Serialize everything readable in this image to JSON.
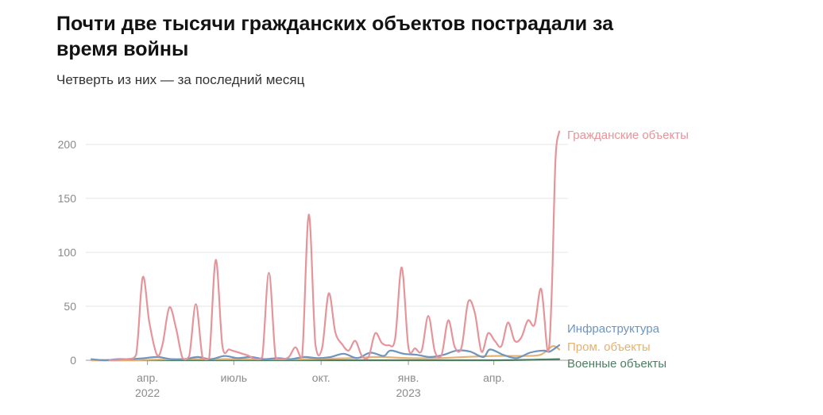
{
  "header": {
    "title": "Почти две тысячи гражданских объектов пострадали за время войны",
    "subtitle": "Четверть из них — за последний месяц"
  },
  "chart_data": {
    "type": "line",
    "title": "Почти две тысячи гражданских объектов пострадали за время войны",
    "subtitle": "Четверть из них — за последний месяц",
    "ylim": [
      0,
      220
    ],
    "y_ticks": [
      0,
      50,
      100,
      150,
      200
    ],
    "x_range": [
      "2022-01-26",
      "2023-05-31"
    ],
    "x_ticks": [
      {
        "date": "2022-04-01",
        "label": "апр.",
        "sublabel": "2022"
      },
      {
        "date": "2022-07-01",
        "label": "июль",
        "sublabel": ""
      },
      {
        "date": "2022-10-01",
        "label": "окт.",
        "sublabel": ""
      },
      {
        "date": "2023-01-01",
        "label": "янв.",
        "sublabel": "2023"
      },
      {
        "date": "2023-04-01",
        "label": "апр.",
        "sublabel": ""
      }
    ],
    "grid": true,
    "legend": "right-end labels",
    "series": [
      {
        "name": "Гражданские объекты",
        "color": "#e5949a",
        "points": [
          [
            "2022-02-20",
            0
          ],
          [
            "2022-03-10",
            1
          ],
          [
            "2022-03-20",
            5
          ],
          [
            "2022-03-27",
            77
          ],
          [
            "2022-04-03",
            35
          ],
          [
            "2022-04-11",
            5
          ],
          [
            "2022-04-17",
            15
          ],
          [
            "2022-04-24",
            49
          ],
          [
            "2022-05-01",
            30
          ],
          [
            "2022-05-08",
            2
          ],
          [
            "2022-05-15",
            4
          ],
          [
            "2022-05-22",
            52
          ],
          [
            "2022-05-29",
            3
          ],
          [
            "2022-06-05",
            2
          ],
          [
            "2022-06-12",
            93
          ],
          [
            "2022-06-19",
            13
          ],
          [
            "2022-06-26",
            10
          ],
          [
            "2022-07-03",
            8
          ],
          [
            "2022-07-10",
            6
          ],
          [
            "2022-07-17",
            4
          ],
          [
            "2022-07-24",
            1
          ],
          [
            "2022-07-31",
            3
          ],
          [
            "2022-08-07",
            81
          ],
          [
            "2022-08-14",
            3
          ],
          [
            "2022-08-21",
            1
          ],
          [
            "2022-08-28",
            3
          ],
          [
            "2022-09-04",
            12
          ],
          [
            "2022-09-11",
            3
          ],
          [
            "2022-09-18",
            135
          ],
          [
            "2022-09-25",
            15
          ],
          [
            "2022-10-02",
            11
          ],
          [
            "2022-10-09",
            62
          ],
          [
            "2022-10-16",
            26
          ],
          [
            "2022-10-23",
            15
          ],
          [
            "2022-10-30",
            9
          ],
          [
            "2022-11-06",
            18
          ],
          [
            "2022-11-13",
            4
          ],
          [
            "2022-11-20",
            3
          ],
          [
            "2022-11-27",
            25
          ],
          [
            "2022-12-04",
            16
          ],
          [
            "2022-12-11",
            14
          ],
          [
            "2022-12-18",
            20
          ],
          [
            "2022-12-25",
            86
          ],
          [
            "2023-01-01",
            12
          ],
          [
            "2023-01-08",
            11
          ],
          [
            "2023-01-15",
            9
          ],
          [
            "2023-01-22",
            41
          ],
          [
            "2023-01-29",
            8
          ],
          [
            "2023-02-05",
            5
          ],
          [
            "2023-02-12",
            37
          ],
          [
            "2023-02-19",
            12
          ],
          [
            "2023-02-26",
            12
          ],
          [
            "2023-03-05",
            54
          ],
          [
            "2023-03-12",
            44
          ],
          [
            "2023-03-19",
            8
          ],
          [
            "2023-03-26",
            25
          ],
          [
            "2023-04-02",
            18
          ],
          [
            "2023-04-09",
            13
          ],
          [
            "2023-04-16",
            35
          ],
          [
            "2023-04-23",
            18
          ],
          [
            "2023-04-30",
            21
          ],
          [
            "2023-05-07",
            37
          ],
          [
            "2023-05-14",
            33
          ],
          [
            "2023-05-21",
            66
          ],
          [
            "2023-05-28",
            8
          ],
          [
            "2023-06-01",
            60
          ],
          [
            "2023-06-05",
            185
          ],
          [
            "2023-06-09",
            212
          ]
        ]
      },
      {
        "name": "Инфраструктура",
        "color": "#6e94bf",
        "points": [
          [
            "2022-02-01",
            1
          ],
          [
            "2022-02-15",
            0
          ],
          [
            "2022-03-01",
            1
          ],
          [
            "2022-03-15",
            1
          ],
          [
            "2022-03-29",
            2
          ],
          [
            "2022-04-12",
            3
          ],
          [
            "2022-04-26",
            1
          ],
          [
            "2022-05-10",
            1
          ],
          [
            "2022-05-24",
            3
          ],
          [
            "2022-06-07",
            1
          ],
          [
            "2022-06-21",
            4
          ],
          [
            "2022-07-05",
            2
          ],
          [
            "2022-07-19",
            3
          ],
          [
            "2022-08-02",
            1
          ],
          [
            "2022-08-16",
            2
          ],
          [
            "2022-08-30",
            1
          ],
          [
            "2022-09-13",
            3
          ],
          [
            "2022-09-27",
            2
          ],
          [
            "2022-10-11",
            3
          ],
          [
            "2022-10-25",
            6
          ],
          [
            "2022-11-08",
            2
          ],
          [
            "2022-11-22",
            7
          ],
          [
            "2022-12-06",
            4
          ],
          [
            "2022-12-13",
            9
          ],
          [
            "2022-12-27",
            6
          ],
          [
            "2023-01-10",
            5
          ],
          [
            "2023-01-24",
            3
          ],
          [
            "2023-02-07",
            5
          ],
          [
            "2023-02-21",
            9
          ],
          [
            "2023-03-07",
            8
          ],
          [
            "2023-03-21",
            3
          ],
          [
            "2023-03-28",
            10
          ],
          [
            "2023-04-11",
            5
          ],
          [
            "2023-04-25",
            2
          ],
          [
            "2023-05-09",
            7
          ],
          [
            "2023-05-23",
            9
          ],
          [
            "2023-05-30",
            8
          ],
          [
            "2023-06-09",
            14
          ]
        ]
      },
      {
        "name": "Пром. объекты",
        "color": "#e3b272",
        "points": [
          [
            "2022-02-01",
            0
          ],
          [
            "2022-03-15",
            0
          ],
          [
            "2022-05-01",
            1
          ],
          [
            "2022-06-15",
            1
          ],
          [
            "2022-08-01",
            1
          ],
          [
            "2022-09-15",
            1
          ],
          [
            "2022-11-01",
            2
          ],
          [
            "2022-12-01",
            3
          ],
          [
            "2023-01-01",
            2
          ],
          [
            "2023-02-01",
            2
          ],
          [
            "2023-03-01",
            3
          ],
          [
            "2023-04-01",
            4
          ],
          [
            "2023-05-01",
            4
          ],
          [
            "2023-05-20",
            5
          ],
          [
            "2023-06-02",
            13
          ],
          [
            "2023-06-09",
            10
          ]
        ]
      },
      {
        "name": "Военные объекты",
        "color": "#4e7d62",
        "points": [
          [
            "2022-02-01",
            0
          ],
          [
            "2022-06-01",
            0
          ],
          [
            "2022-10-01",
            0
          ],
          [
            "2023-01-01",
            0
          ],
          [
            "2023-04-01",
            0
          ],
          [
            "2023-06-09",
            1
          ]
        ]
      }
    ]
  }
}
